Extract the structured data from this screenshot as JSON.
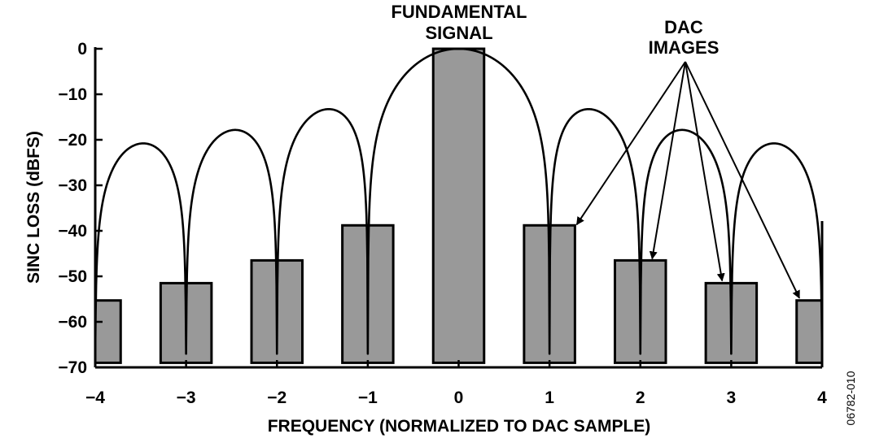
{
  "chart_data": {
    "type": "bar",
    "xlabel": "FREQUENCY (NORMALIZED TO DAC SAMPLE)",
    "ylabel": "SINC LOSS (dBFS)",
    "xlim": [
      -4,
      4
    ],
    "ylim": [
      -70,
      0
    ],
    "xticks": [
      "−4",
      "−3",
      "−2",
      "−1",
      "0",
      "1",
      "2",
      "3",
      "4"
    ],
    "xtick_values": [
      -4,
      -3,
      -2,
      -1,
      0,
      1,
      2,
      3,
      4
    ],
    "yticks": [
      "0",
      "−10",
      "−20",
      "−30",
      "−40",
      "−50",
      "−60",
      "−70"
    ],
    "ytick_values": [
      0,
      -10,
      -20,
      -30,
      -40,
      -50,
      -60,
      -70
    ],
    "bars": [
      {
        "x": -4,
        "value": -55.3
      },
      {
        "x": -3,
        "value": -51.5
      },
      {
        "x": -2,
        "value": -46.5
      },
      {
        "x": -1,
        "value": -38.8
      },
      {
        "x": 0,
        "value": 0
      },
      {
        "x": 1,
        "value": -38.8
      },
      {
        "x": 2,
        "value": -46.5
      },
      {
        "x": 3,
        "value": -51.5
      },
      {
        "x": 4,
        "value": -55.3
      }
    ],
    "envelope": "sinc response (dB), nulls at integer multiples of the sample rate",
    "annotations": {
      "fundamental_line1": "FUNDAMENTAL",
      "fundamental_line2": "SIGNAL",
      "images_line1": "DAC",
      "images_line2": "IMAGES"
    },
    "figure_code": "06782-010",
    "colors": {
      "bar": "#999999",
      "line": "#000000",
      "background": "#ffffff"
    }
  }
}
